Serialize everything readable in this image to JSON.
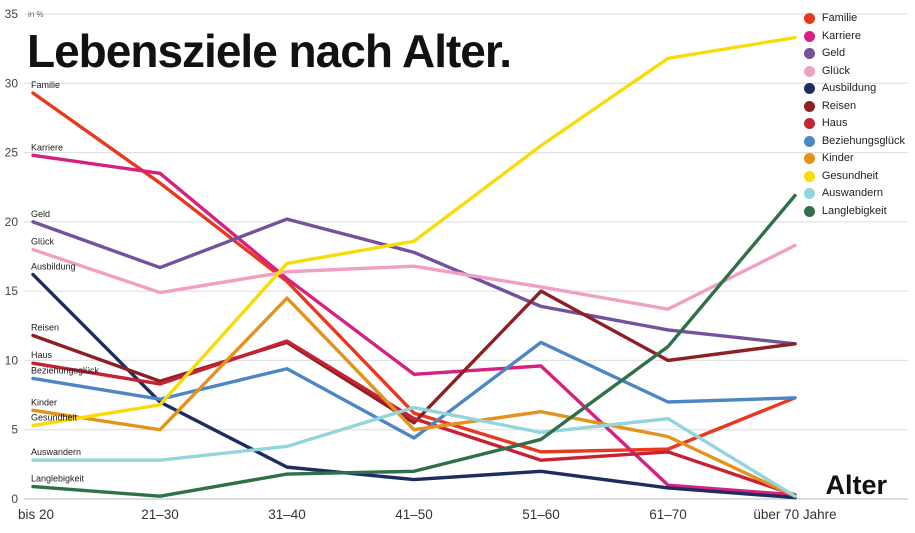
{
  "title": "Lebensziele nach Alter.",
  "y_axis": {
    "unit_label": "in %",
    "ticks": [
      0,
      5,
      10,
      15,
      20,
      25,
      30,
      35
    ]
  },
  "x_axis": {
    "label": "Alter"
  },
  "chart_data": {
    "type": "line",
    "title": "Lebensziele nach Alter.",
    "xlabel": "Alter",
    "ylabel": "in %",
    "ylim": [
      0,
      35
    ],
    "grid": true,
    "legend_position": "top-right",
    "x": [
      "bis 20",
      "21–30",
      "31–40",
      "41–50",
      "51–60",
      "61–70",
      "über 70 Jahre"
    ],
    "series": [
      {
        "name": "Familie",
        "color": "#e6391f",
        "values": [
          29.3,
          22.8,
          15.7,
          6.2,
          3.4,
          3.6,
          7.3
        ]
      },
      {
        "name": "Karriere",
        "color": "#d6217f",
        "values": [
          24.8,
          23.5,
          15.9,
          9.0,
          9.6,
          1.0,
          0.3
        ]
      },
      {
        "name": "Geld",
        "color": "#74519c",
        "values": [
          20.0,
          16.7,
          20.2,
          17.8,
          13.9,
          12.2,
          11.2
        ]
      },
      {
        "name": "Glück",
        "color": "#efa0c4",
        "values": [
          18.0,
          14.9,
          16.4,
          16.8,
          15.3,
          13.7,
          18.3
        ]
      },
      {
        "name": "Ausbildung",
        "color": "#1c2d5e",
        "values": [
          16.2,
          7.0,
          2.3,
          1.4,
          2.0,
          0.8,
          0.1
        ]
      },
      {
        "name": "Reisen",
        "color": "#8e1f24",
        "values": [
          11.8,
          8.5,
          11.3,
          5.5,
          15.0,
          10.0,
          11.2
        ]
      },
      {
        "name": "Haus",
        "color": "#c52233",
        "values": [
          9.8,
          8.3,
          11.4,
          5.8,
          2.8,
          3.4,
          0.3
        ]
      },
      {
        "name": "Beziehungsglück",
        "color": "#4d86c5",
        "values": [
          8.7,
          7.2,
          9.4,
          4.4,
          11.3,
          7.0,
          7.3
        ]
      },
      {
        "name": "Kinder",
        "color": "#e3921e",
        "values": [
          6.4,
          5.0,
          14.5,
          5.0,
          6.3,
          4.5,
          0.2
        ]
      },
      {
        "name": "Gesundheit",
        "color": "#f8dc0a",
        "values": [
          5.3,
          6.8,
          17.0,
          18.6,
          25.5,
          31.8,
          33.3
        ]
      },
      {
        "name": "Auswandern",
        "color": "#92d5dc",
        "values": [
          2.8,
          2.8,
          3.8,
          6.6,
          4.8,
          5.8,
          0.2
        ]
      },
      {
        "name": "Langlebigkeit",
        "color": "#2f7049",
        "values": [
          0.9,
          0.2,
          1.8,
          2.0,
          4.3,
          11.0,
          21.9
        ]
      }
    ]
  }
}
